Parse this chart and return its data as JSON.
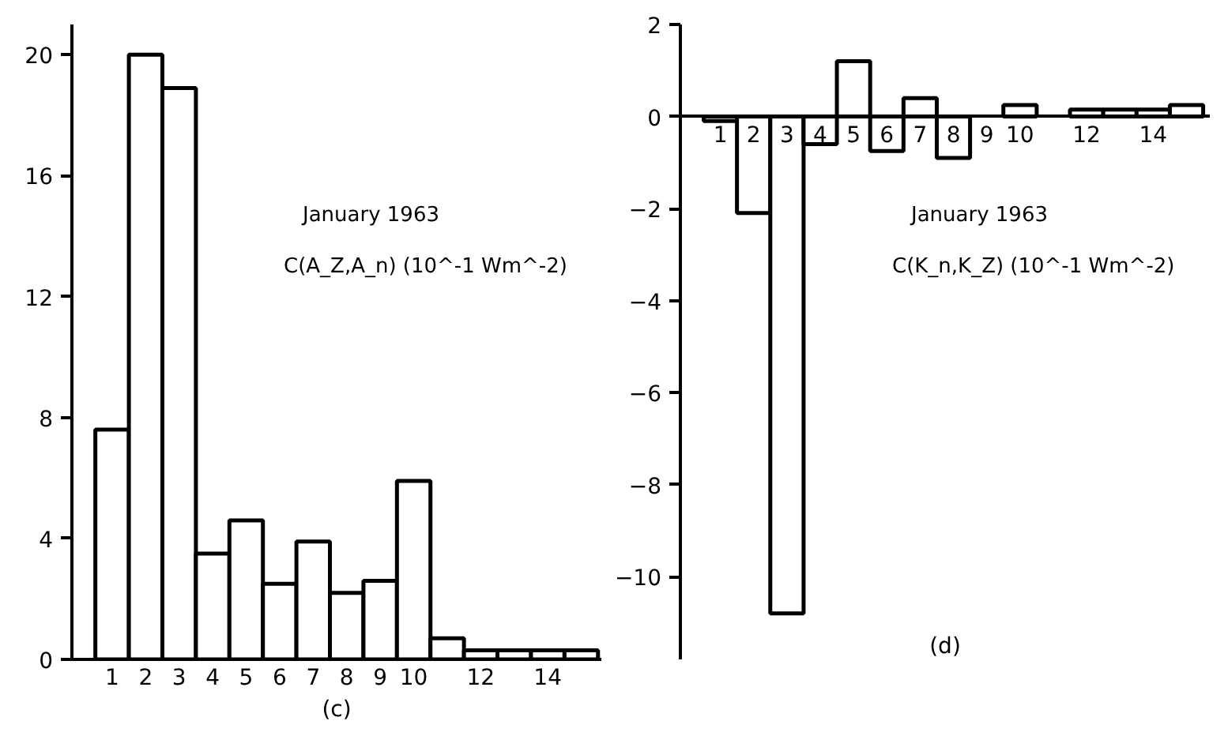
{
  "chart_data": [
    {
      "type": "bar",
      "xlabel": "(c)",
      "x": [
        1,
        2,
        3,
        4,
        5,
        6,
        7,
        8,
        9,
        10,
        11,
        12,
        13,
        14,
        15
      ],
      "values": [
        7.6,
        20,
        18.9,
        3.5,
        4.6,
        2.5,
        3.9,
        2.2,
        2.6,
        5.9,
        0.7,
        0.3,
        0.3,
        0.3,
        0.3
      ],
      "color": "#ffffff",
      "xlim": [
        -0.2,
        15.6
      ],
      "ylim": [
        0,
        21
      ],
      "xticks": [
        1,
        2,
        3,
        4,
        5,
        6,
        7,
        8,
        9,
        10,
        12,
        14
      ],
      "yticks": [
        0,
        4,
        8,
        12,
        16,
        20
      ],
      "annotations": [
        "January 1963",
        "C(A_Z,A_n) (10^-1 Wm^-2)"
      ]
    },
    {
      "type": "bar",
      "xlabel": "(d)",
      "x": [
        1,
        2,
        3,
        4,
        5,
        6,
        7,
        8,
        9,
        10,
        11,
        12,
        13,
        14,
        15
      ],
      "values": [
        -0.1,
        -2.1,
        -10.8,
        -0.6,
        1.2,
        -0.75,
        0.4,
        -0.9,
        null,
        0.25,
        null,
        0.15,
        0.15,
        0.15,
        0.25
      ],
      "color": "#ffffff",
      "xlim": [
        -0.2,
        15.7
      ],
      "ylim": [
        -11.8,
        2
      ],
      "xticks": [
        1,
        2,
        3,
        4,
        5,
        6,
        7,
        8,
        9,
        10,
        12,
        14
      ],
      "yticks": [
        2,
        0,
        -2,
        -4,
        -6,
        -8,
        -10
      ],
      "annotations": [
        "January 1963",
        "C(K_n,K_Z) (10^-1 Wm^-2)"
      ]
    }
  ]
}
